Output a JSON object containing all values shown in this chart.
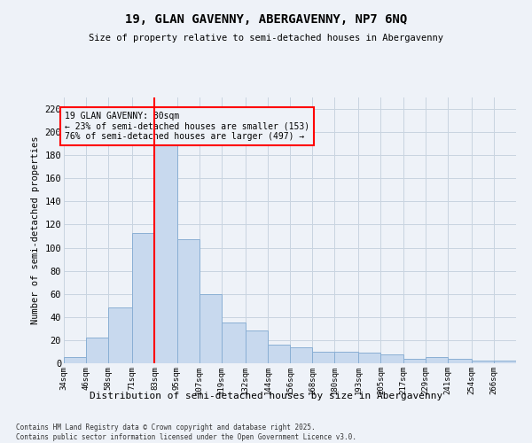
{
  "title": "19, GLAN GAVENNY, ABERGAVENNY, NP7 6NQ",
  "subtitle": "Size of property relative to semi-detached houses in Abergavenny",
  "xlabel": "Distribution of semi-detached houses by size in Abergavenny",
  "ylabel": "Number of semi-detached properties",
  "bar_color": "#c8d9ee",
  "bar_edge_color": "#8aafd4",
  "grid_color": "#c8d4e0",
  "property_line_x": 83,
  "annotation_text": "19 GLAN GAVENNY: 80sqm\n← 23% of semi-detached houses are smaller (153)\n76% of semi-detached houses are larger (497) →",
  "footer": "Contains HM Land Registry data © Crown copyright and database right 2025.\nContains public sector information licensed under the Open Government Licence v3.0.",
  "bins": [
    34,
    46,
    58,
    71,
    83,
    95,
    107,
    119,
    132,
    144,
    156,
    168,
    180,
    193,
    205,
    217,
    229,
    241,
    254,
    266,
    278
  ],
  "counts": [
    5,
    22,
    48,
    113,
    190,
    107,
    60,
    35,
    28,
    16,
    14,
    10,
    10,
    9,
    8,
    4,
    5,
    4,
    2,
    2
  ],
  "ylim": [
    0,
    230
  ],
  "yticks": [
    0,
    20,
    40,
    60,
    80,
    100,
    120,
    140,
    160,
    180,
    200,
    220
  ],
  "background_color": "#eef2f8",
  "plot_bg_color": "#eef2f8"
}
